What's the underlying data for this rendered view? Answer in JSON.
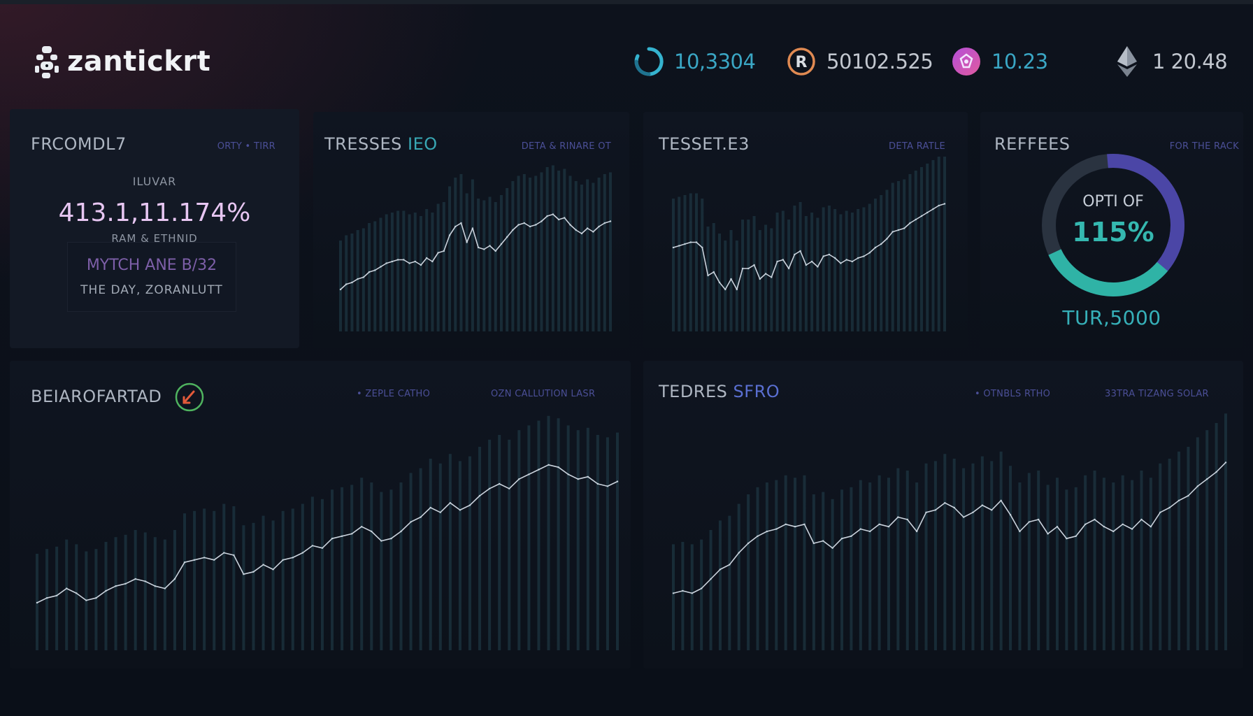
{
  "app": {
    "name": "zantickrt"
  },
  "header_stats": [
    {
      "icon": "refresh-ring-icon",
      "value": "10,3304",
      "color": "#3aa6c4"
    },
    {
      "icon": "r-coin-icon",
      "value": "50102.525",
      "color": "#c2c7cf"
    },
    {
      "icon": "shield-gem-icon",
      "value": "10.23",
      "color": "#3aa6c4"
    },
    {
      "icon": "ethereum-icon",
      "value": "1 20.48",
      "color": "#c2c7cf"
    }
  ],
  "panels": {
    "summary": {
      "title": "FRCOMDL7",
      "subtitle": "ORTY • TIRR",
      "kpi_label": "ILUVAR",
      "kpi_value": "413.1,11.174%",
      "kpi_caption": "RAM & ETHNID",
      "box_line1": "MYTCH ANE B/32",
      "box_line2": "THE DAY, ZORANLUTT"
    },
    "tresses": {
      "title": "TRESSES",
      "title_accent": "IEO",
      "subtitle": "DETA & RINARE OT"
    },
    "tesset": {
      "title": "TESSET.E3",
      "subtitle": "DETA RATLE"
    },
    "reffees": {
      "title": "REFFEES",
      "subtitle": "FOR THE RACK",
      "ring_label": "OPTI OF",
      "ring_value": "115%",
      "ring_fraction": 0.62,
      "footer": "TUR,5000"
    },
    "bearofartad": {
      "title": "BEIAROFARTAD",
      "legend_a": "• ZEPLE CATHO",
      "legend_b": "OZN CALLUTION LASR"
    },
    "tedres": {
      "title": "TEDRES",
      "title_accent": "SFRO",
      "legend_a": "• OTNBLS RTHO",
      "legend_b": "33TRA TIZANG SOLAR"
    }
  },
  "colors": {
    "accent_teal": "#35b8b0",
    "accent_indigo": "#4b46a6",
    "line": "#c9d2dc",
    "bar": "#22414f"
  },
  "chart_data": [
    {
      "type": "line",
      "panel": "tresses",
      "x": [
        0,
        1,
        2,
        3,
        4,
        5,
        6,
        7,
        8,
        9,
        10,
        11,
        12,
        13,
        14,
        15,
        16,
        17,
        18,
        19,
        20,
        21,
        22,
        23,
        24,
        25,
        26,
        27,
        28,
        29,
        30,
        31,
        32,
        33,
        34,
        35,
        36,
        37,
        38,
        39,
        40,
        41,
        42,
        43,
        44,
        45,
        46,
        47
      ],
      "y": [
        24,
        27,
        28,
        30,
        31,
        34,
        35,
        37,
        39,
        40,
        41,
        41,
        39,
        40,
        38,
        42,
        40,
        45,
        46,
        55,
        60,
        62,
        51,
        59,
        48,
        47,
        49,
        46,
        50,
        54,
        58,
        61,
        62,
        60,
        61,
        63,
        66,
        67,
        64,
        65,
        61,
        58,
        56,
        59,
        57,
        60,
        62,
        63
      ],
      "ylim": [
        0,
        100
      ]
    },
    {
      "type": "line",
      "panel": "tesset",
      "x": [
        0,
        1,
        2,
        3,
        4,
        5,
        6,
        7,
        8,
        9,
        10,
        11,
        12,
        13,
        14,
        15,
        16,
        17,
        18,
        19,
        20,
        21,
        22,
        23,
        24,
        25,
        26,
        27,
        28,
        29,
        30,
        31,
        32,
        33,
        34,
        35,
        36,
        37,
        38,
        39,
        40,
        41,
        42,
        43,
        44,
        45,
        46,
        47
      ],
      "y": [
        48,
        49,
        50,
        51,
        51,
        48,
        32,
        34,
        28,
        24,
        30,
        24,
        36,
        36,
        38,
        30,
        33,
        31,
        40,
        41,
        36,
        44,
        46,
        38,
        40,
        37,
        43,
        44,
        42,
        39,
        41,
        40,
        42,
        43,
        45,
        48,
        50,
        53,
        57,
        58,
        59,
        62,
        64,
        66,
        68,
        70,
        72,
        73
      ],
      "ylim": [
        0,
        100
      ]
    },
    {
      "type": "line",
      "panel": "bearofartad",
      "x": [
        0,
        1,
        2,
        3,
        4,
        5,
        6,
        7,
        8,
        9,
        10,
        11,
        12,
        13,
        14,
        15,
        16,
        17,
        18,
        19,
        20,
        21,
        22,
        23,
        24,
        25,
        26,
        27,
        28,
        29,
        30,
        31,
        32,
        33,
        34,
        35,
        36,
        37,
        38,
        39,
        40,
        41,
        42,
        43,
        44,
        45,
        46,
        47,
        48,
        49,
        50,
        51,
        52,
        53,
        54,
        55,
        56,
        57,
        58,
        59
      ],
      "y": [
        20,
        22,
        23,
        26,
        24,
        21,
        22,
        25,
        27,
        28,
        30,
        29,
        27,
        26,
        30,
        37,
        38,
        39,
        38,
        41,
        40,
        32,
        33,
        36,
        34,
        38,
        39,
        41,
        44,
        43,
        47,
        48,
        49,
        52,
        50,
        46,
        47,
        50,
        54,
        56,
        60,
        58,
        62,
        59,
        61,
        65,
        68,
        70,
        68,
        72,
        74,
        76,
        78,
        77,
        74,
        72,
        73,
        70,
        69,
        71
      ],
      "ylim": [
        0,
        100
      ]
    },
    {
      "type": "line",
      "panel": "tedres",
      "x": [
        0,
        1,
        2,
        3,
        4,
        5,
        6,
        7,
        8,
        9,
        10,
        11,
        12,
        13,
        14,
        15,
        16,
        17,
        18,
        19,
        20,
        21,
        22,
        23,
        24,
        25,
        26,
        27,
        28,
        29,
        30,
        31,
        32,
        33,
        34,
        35,
        36,
        37,
        38,
        39,
        40,
        41,
        42,
        43,
        44,
        45,
        46,
        47,
        48,
        49,
        50,
        51,
        52,
        53,
        54,
        55,
        56,
        57,
        58,
        59
      ],
      "y": [
        24,
        25,
        24,
        26,
        30,
        34,
        36,
        41,
        45,
        48,
        50,
        51,
        53,
        52,
        53,
        45,
        46,
        43,
        47,
        48,
        51,
        50,
        53,
        52,
        56,
        55,
        50,
        58,
        59,
        62,
        60,
        56,
        58,
        61,
        59,
        63,
        57,
        50,
        54,
        55,
        49,
        52,
        47,
        48,
        53,
        55,
        52,
        50,
        53,
        51,
        55,
        52,
        58,
        60,
        63,
        65,
        69,
        72,
        75,
        79
      ],
      "ylim": [
        0,
        100
      ]
    }
  ]
}
